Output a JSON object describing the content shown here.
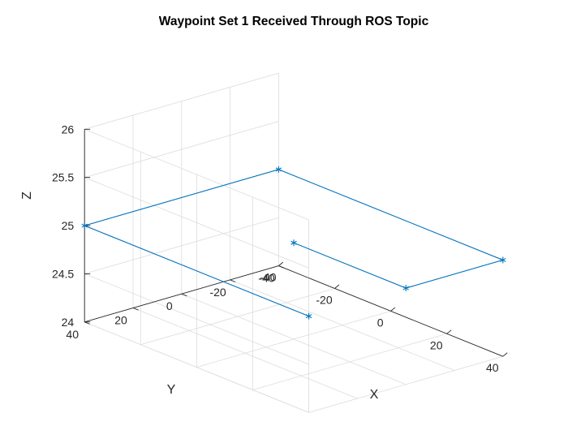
{
  "chart_data": {
    "type": "line",
    "title": "Waypoint Set 1 Received Through ROS Topic",
    "xlabel": "X",
    "ylabel": "Y",
    "zlabel": "Z",
    "xlim": [
      -40,
      40
    ],
    "ylim": [
      -40,
      40
    ],
    "zlim": [
      24,
      26
    ],
    "xticks": [
      "-40",
      "-20",
      "0",
      "20",
      "40"
    ],
    "yticks": [
      "-40",
      "-20",
      "0",
      "20",
      "40"
    ],
    "zticks": [
      "24",
      "24.5",
      "25",
      "25.5",
      "26"
    ],
    "grid": true,
    "series": [
      {
        "color": "#0072BD",
        "marker": "asterisk",
        "points": [
          {
            "x": 0,
            "y": 0,
            "z": 25
          },
          {
            "x": 40,
            "y": 0,
            "z": 25
          },
          {
            "x": 40,
            "y": -40,
            "z": 25
          },
          {
            "x": -40,
            "y": -40,
            "z": 25
          },
          {
            "x": -40,
            "y": 40,
            "z": 25
          },
          {
            "x": 40,
            "y": 40,
            "z": 25
          }
        ]
      }
    ]
  }
}
